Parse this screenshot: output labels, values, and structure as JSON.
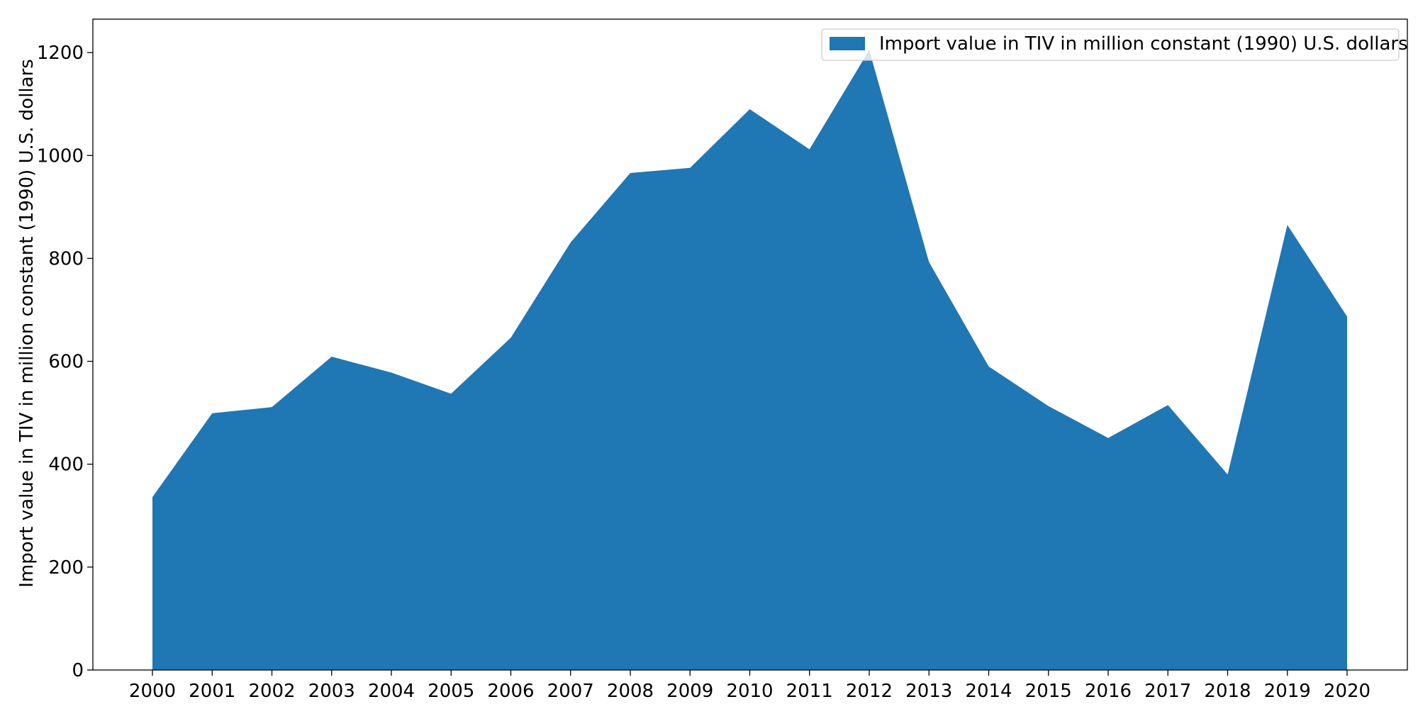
{
  "chart_data": {
    "type": "area",
    "title": "",
    "xlabel": "",
    "ylabel": "Import value in TIV in million constant (1990) U.S. dollars",
    "categories": [
      "2000",
      "2001",
      "2002",
      "2003",
      "2004",
      "2005",
      "2006",
      "2007",
      "2008",
      "2009",
      "2010",
      "2011",
      "2012",
      "2013",
      "2014",
      "2015",
      "2016",
      "2017",
      "2018",
      "2019",
      "2020"
    ],
    "series": [
      {
        "name": "Import value in TIV in million constant (1990) U.S. dollars",
        "values": [
          336,
          499,
          511,
          609,
          578,
          537,
          646,
          831,
          966,
          976,
          1090,
          1012,
          1205,
          793,
          590,
          513,
          451,
          515,
          380,
          865,
          687
        ],
        "color": "#1f77b4"
      }
    ],
    "ylim": [
      0,
      1265
    ],
    "yticks": [
      0,
      200,
      400,
      600,
      800,
      1000,
      1200
    ],
    "grid": false,
    "legend": "top-right"
  }
}
